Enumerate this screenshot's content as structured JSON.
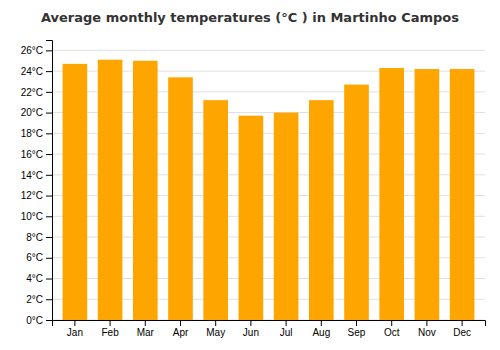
{
  "chart_data": {
    "type": "bar",
    "title": "Average monthly temperatures (°C ) in Martinho Campos",
    "categories": [
      "Jan",
      "Feb",
      "Mar",
      "Apr",
      "May",
      "Jun",
      "Jul",
      "Aug",
      "Sep",
      "Oct",
      "Nov",
      "Dec"
    ],
    "values": [
      24.7,
      25.1,
      25.0,
      23.4,
      21.2,
      19.7,
      20.0,
      21.2,
      22.7,
      24.3,
      24.2,
      24.2
    ],
    "color": "#FFA500",
    "ylim": [
      0,
      27
    ],
    "yticks": [
      {
        "value": 0,
        "label": "0°C"
      },
      {
        "value": 2,
        "label": "2°C"
      },
      {
        "value": 4,
        "label": "4°C"
      },
      {
        "value": 6,
        "label": "6°C"
      },
      {
        "value": 8,
        "label": "8°C"
      },
      {
        "value": 10,
        "label": "10°C"
      },
      {
        "value": 12,
        "label": "12°C"
      },
      {
        "value": 14,
        "label": "14°C"
      },
      {
        "value": 16,
        "label": "16°C"
      },
      {
        "value": 18,
        "label": "18°C"
      },
      {
        "value": 20,
        "label": "20°C"
      },
      {
        "value": 22,
        "label": "22°C"
      },
      {
        "value": 24,
        "label": "24°C"
      },
      {
        "value": 26,
        "label": "26°C"
      }
    ],
    "grid": true
  }
}
